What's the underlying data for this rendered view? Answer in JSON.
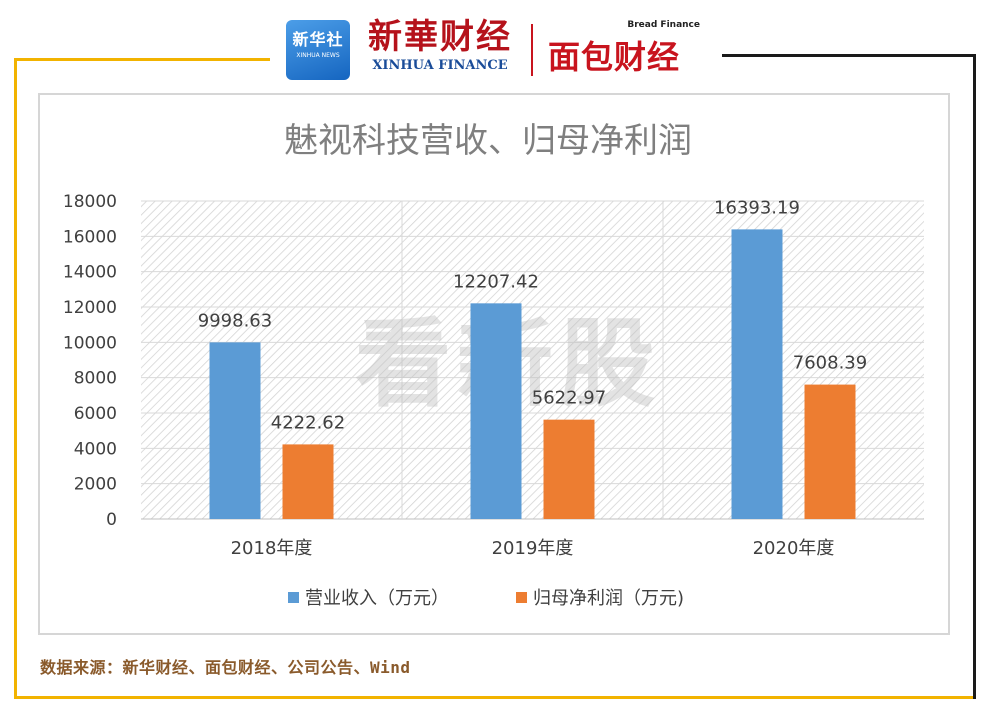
{
  "header": {
    "logo_xinhua_she": {
      "cn": "新华社",
      "en": "XINHUA NEWS"
    },
    "logo_xinhua_finance": {
      "cn": "新華财经",
      "en": "XINHUA FINANCE"
    },
    "logo_bread_finance": {
      "cn": "面包财经",
      "en": "Bread Finance"
    }
  },
  "colors": {
    "frame_yellow": "#f2b300",
    "frame_black": "#1a1a1a",
    "series_revenue": "#5b9bd5",
    "series_profit": "#ed7d31"
  },
  "chart_data": {
    "type": "bar",
    "title": "魅视科技营收、归母净利润",
    "categories": [
      "2018年度",
      "2019年度",
      "2020年度"
    ],
    "series": [
      {
        "name": "营业收入（万元）",
        "values": [
          9998.63,
          12207.42,
          16393.19
        ],
        "labels": [
          "9998.63",
          "12207.42",
          "16393.19"
        ],
        "color": "#5b9bd5"
      },
      {
        "name": "归母净利润（万元)",
        "values": [
          4222.62,
          5622.97,
          7608.39
        ],
        "labels": [
          "4222.62",
          "5622.97",
          "7608.39"
        ],
        "color": "#ed7d31"
      }
    ],
    "ylim": [
      0,
      18000
    ],
    "yticks": [
      0,
      2000,
      4000,
      6000,
      8000,
      10000,
      12000,
      14000,
      16000,
      18000
    ],
    "grid": true,
    "legend_position": "bottom",
    "watermark": "看新股"
  },
  "footer": {
    "source": "数据来源：新华财经、面包财经、公司公告、Wind"
  }
}
